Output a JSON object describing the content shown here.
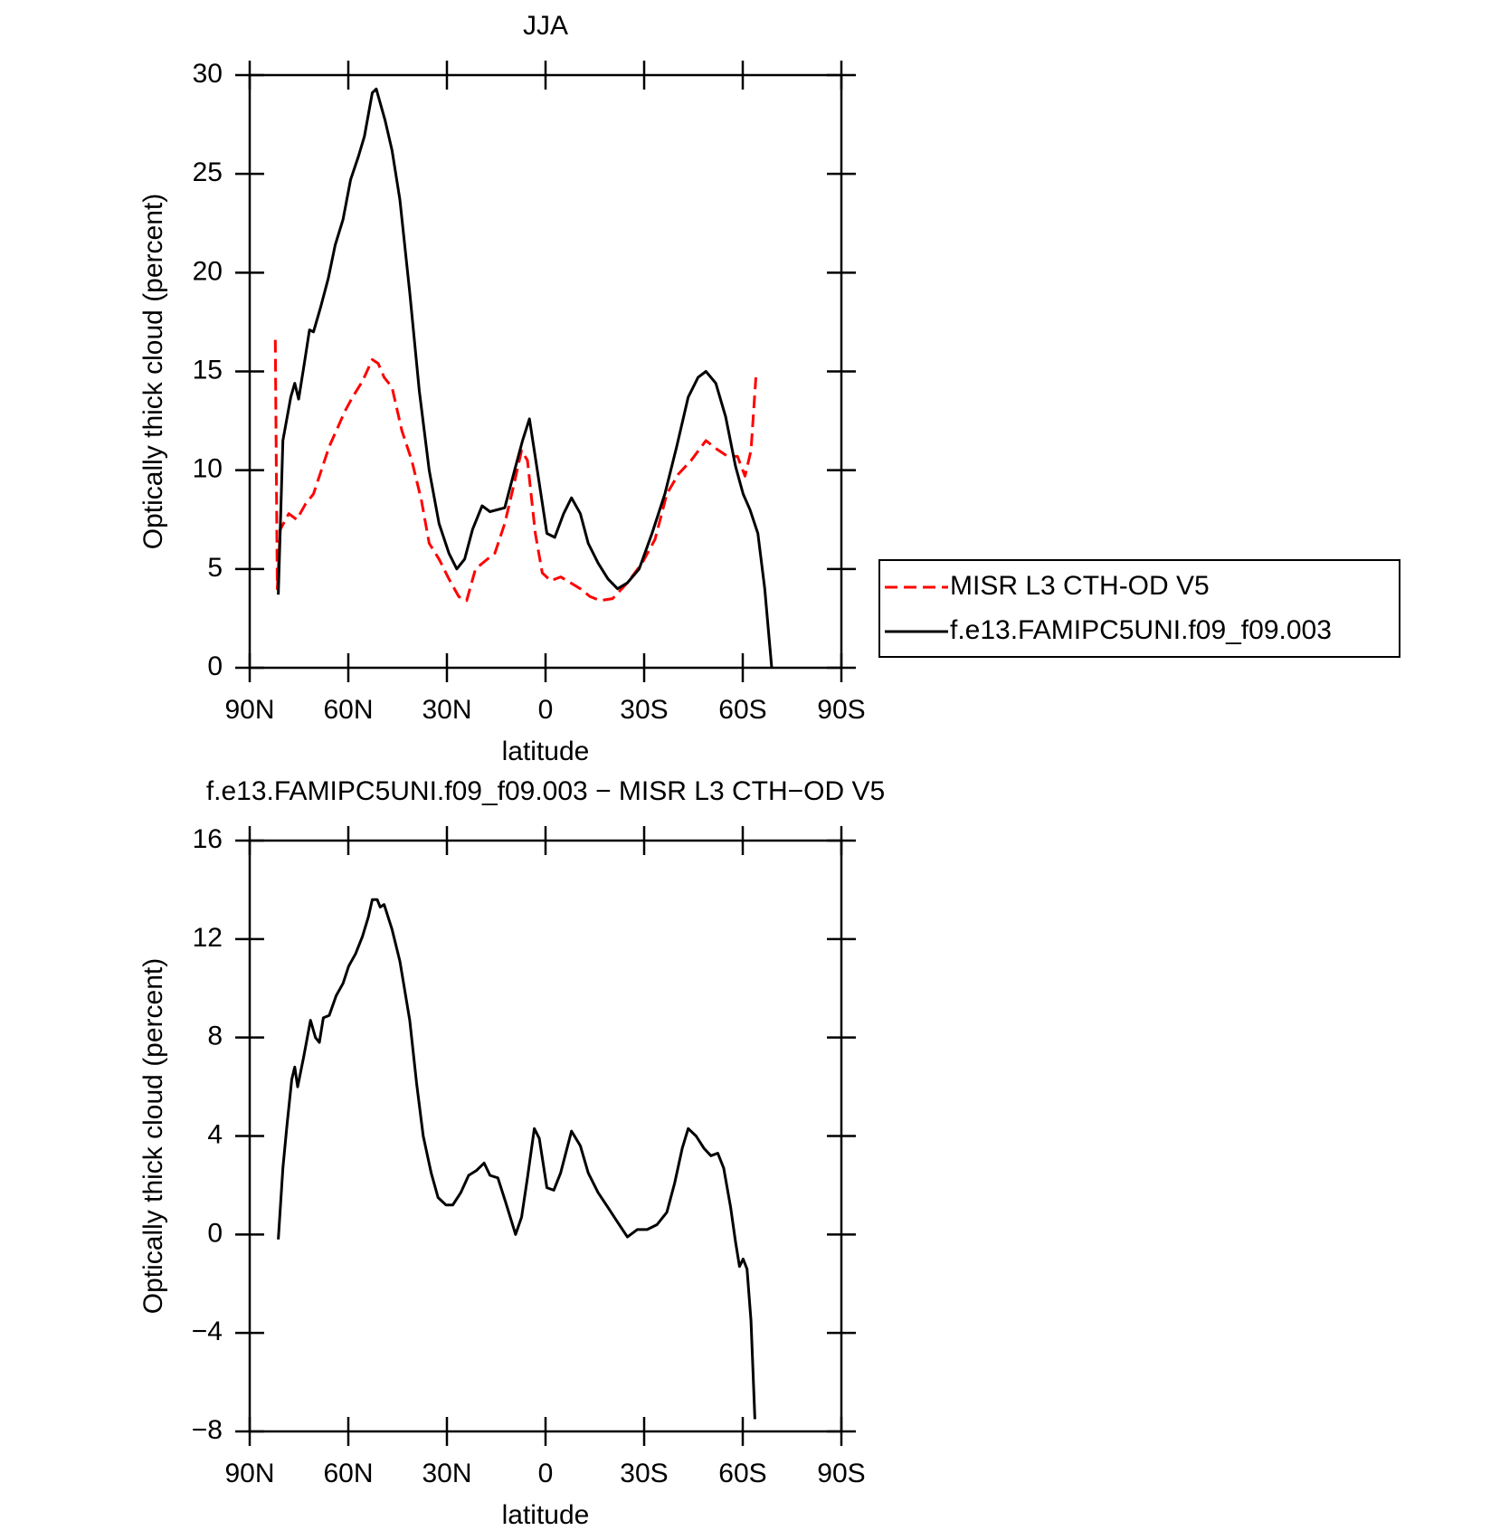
{
  "chart_data": [
    {
      "type": "line",
      "title": "JJA",
      "xlabel": "latitude",
      "ylabel": "Optically thick cloud (percent)",
      "xlim": [
        90,
        -90
      ],
      "xticks": [
        {
          "value": 90,
          "label": "90N"
        },
        {
          "value": 60,
          "label": "60N"
        },
        {
          "value": 30,
          "label": "30N"
        },
        0,
        {
          "value": -30,
          "label": "30S"
        },
        {
          "value": -60,
          "label": "60S"
        },
        {
          "value": -90,
          "label": "90S"
        }
      ],
      "ylim": [
        0,
        30
      ],
      "yticks": [
        0,
        5,
        10,
        15,
        20,
        25,
        30
      ],
      "legend": "right",
      "series": [
        {
          "name": "MISR L3 CTH-OD V5",
          "color": "#ff0000",
          "dashed": true,
          "x": [
            82.2,
            81.6,
            80.7,
            78.1,
            75.7,
            73.0,
            70.6,
            68.2,
            65.8,
            63.1,
            61.0,
            58.7,
            55.7,
            52.7,
            50.9,
            49.1,
            46.7,
            43.7,
            40.7,
            37.8,
            35.4,
            32.4,
            29.4,
            26.4,
            24.0,
            21.3,
            18.4,
            15.4,
            12.4,
            10.0,
            7.3,
            5.5,
            3.1,
            1.0,
            -1.6,
            -4.6,
            -7.6,
            -10.6,
            -13.6,
            -16.6,
            -20.4,
            -24.9,
            -29.4,
            -33.3,
            -36.9,
            -40.4,
            -44.3,
            -48.8,
            -51.8,
            -55.4,
            -58.4,
            -60.7,
            -62.5,
            -64.0
          ],
          "values": [
            16.6,
            4,
            7,
            7.8,
            7.5,
            8.3,
            8.8,
            10,
            11.2,
            12.2,
            13,
            13.7,
            14.5,
            15.6,
            15.4,
            14.7,
            14.2,
            12,
            10.5,
            8.5,
            6.3,
            5.5,
            4.5,
            3.6,
            3.4,
            5,
            5.4,
            5.8,
            7.3,
            9,
            11,
            10.5,
            6.8,
            4.8,
            4.4,
            4.6,
            4.3,
            4,
            3.6,
            3.4,
            3.5,
            4.3,
            5.3,
            6.5,
            8.8,
            9.8,
            10.5,
            11.5,
            11.1,
            10.7,
            10.7,
            9.7,
            11,
            14.7
          ]
        },
        {
          "name": "f.e13.FAMIPC5UNI.f09_f09.003",
          "color": "#000000",
          "dashed": false,
          "x": [
            81.3,
            79.9,
            77.5,
            76.3,
            75.1,
            73.3,
            71.8,
            70.6,
            68.5,
            66.1,
            64.0,
            61.6,
            59.3,
            56.9,
            55.1,
            52.7,
            51.5,
            48.8,
            46.7,
            44.3,
            41.3,
            38.4,
            35.4,
            32.4,
            29.4,
            27.0,
            24.6,
            22.2,
            19.3,
            16.9,
            12.4,
            9.4,
            7.0,
            4.9,
            2.5,
            -0.4,
            -2.8,
            -5.5,
            -7.9,
            -10.6,
            -13.0,
            -16.0,
            -19.0,
            -21.9,
            -24.9,
            -28.5,
            -32.4,
            -36.3,
            -39.9,
            -43.4,
            -46.4,
            -48.8,
            -51.8,
            -54.8,
            -57.8,
            -60.1,
            -62.2,
            -64.6,
            -66.7,
            -68.8
          ],
          "values": [
            3.7,
            11.5,
            13.7,
            14.4,
            13.6,
            15.5,
            17.1,
            17,
            18.2,
            19.7,
            21.4,
            22.7,
            24.7,
            25.9,
            26.9,
            29.1,
            29.3,
            27.7,
            26.2,
            23.7,
            19,
            14,
            10,
            7.3,
            5.8,
            5,
            5.5,
            7,
            8.2,
            7.9,
            8.1,
            10,
            11.5,
            12.6,
            10,
            6.8,
            6.6,
            7.8,
            8.6,
            7.8,
            6.3,
            5.3,
            4.5,
            4,
            4.3,
            5,
            6.8,
            8.8,
            11.2,
            13.7,
            14.7,
            15,
            14.4,
            12.7,
            10.2,
            8.8,
            8,
            6.8,
            4,
            0
          ]
        }
      ]
    },
    {
      "type": "line",
      "title": "f.e13.FAMIPC5UNI.f09_f09.003 − MISR L3 CTH−OD V5",
      "xlabel": "latitude",
      "ylabel": "Optically thick cloud (percent)",
      "xlim": [
        90,
        -90
      ],
      "xticks": [
        {
          "value": 90,
          "label": "90N"
        },
        {
          "value": 60,
          "label": "60N"
        },
        {
          "value": 30,
          "label": "30N"
        },
        0,
        {
          "value": -30,
          "label": "30S"
        },
        {
          "value": -60,
          "label": "60S"
        },
        {
          "value": -90,
          "label": "90S"
        }
      ],
      "ylim": [
        -8,
        16
      ],
      "yticks": [
        {
          "value": -8,
          "label": "−8"
        },
        {
          "value": -4,
          "label": "−4"
        },
        0,
        4,
        8,
        12,
        16
      ],
      "series": [
        {
          "color": "#000000",
          "dashed": false,
          "x": [
            81.3,
            79.9,
            78.7,
            77.2,
            76.3,
            75.4,
            73.6,
            71.5,
            70.0,
            68.8,
            67.6,
            65.8,
            63.7,
            61.6,
            59.9,
            57.8,
            55.7,
            53.9,
            52.7,
            51.2,
            50.3,
            49.1,
            46.7,
            44.3,
            41.3,
            39.2,
            37.2,
            34.8,
            32.7,
            30.3,
            28.2,
            25.8,
            23.4,
            21.0,
            18.7,
            16.9,
            14.5,
            12.1,
            9.1,
            7.3,
            5.5,
            3.4,
            1.9,
            -0.4,
            -2.5,
            -4.6,
            -7.9,
            -10.6,
            -13.0,
            -16.0,
            -19.0,
            -21.9,
            -24.9,
            -27.9,
            -30.9,
            -33.9,
            -36.9,
            -39.3,
            -41.6,
            -43.4,
            -45.8,
            -48.2,
            -50.3,
            -52.4,
            -54.2,
            -56.3,
            -57.8,
            -59.0,
            -60.1,
            -61.3,
            -62.5,
            -63.7
          ],
          "values": [
            -0.2,
            2.7,
            4.4,
            6.3,
            6.8,
            6,
            7.2,
            8.7,
            8,
            7.8,
            8.8,
            8.9,
            9.7,
            10.2,
            10.9,
            11.4,
            12.1,
            12.9,
            13.6,
            13.6,
            13.3,
            13.4,
            12.4,
            11.1,
            8.7,
            6.1,
            4,
            2.5,
            1.5,
            1.2,
            1.2,
            1.7,
            2.4,
            2.6,
            2.9,
            2.4,
            2.3,
            1.3,
            0,
            0.7,
            2.3,
            4.3,
            3.9,
            1.9,
            1.8,
            2.5,
            4.2,
            3.6,
            2.5,
            1.7,
            1.1,
            0.5,
            -0.1,
            0.2,
            0.2,
            0.4,
            0.9,
            2.1,
            3.5,
            4.3,
            4,
            3.5,
            3.2,
            3.3,
            2.7,
            1.1,
            -0.3,
            -1.3,
            -1,
            -1.4,
            -3.5,
            -7.5
          ]
        }
      ]
    }
  ]
}
